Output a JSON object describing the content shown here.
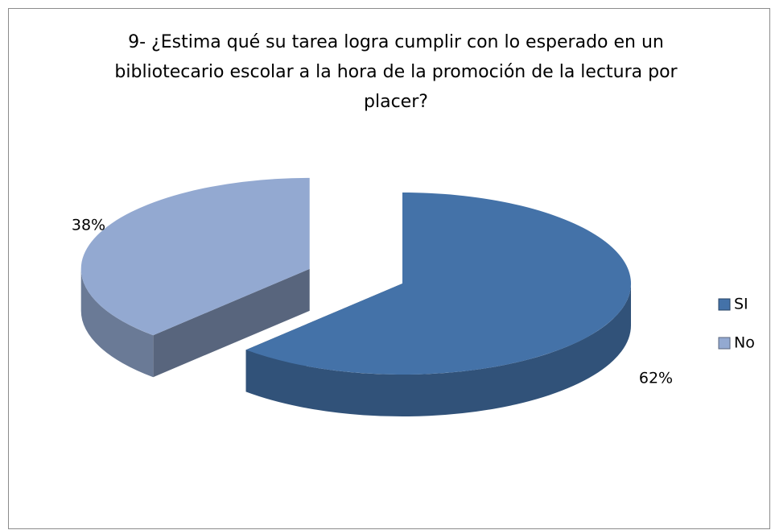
{
  "chart_data": {
    "type": "pie3d",
    "title": "9- ¿Estima qué su tarea logra cumplir con lo esperado en un bibliotecario escolar a la hora de la promoción de la lectura por placer?",
    "categories": [
      "SI",
      "No"
    ],
    "values": [
      62,
      38
    ],
    "value_labels": [
      "62%",
      "38%"
    ],
    "colors": [
      "#4472a8",
      "#93a9d1"
    ],
    "legend": "right"
  }
}
